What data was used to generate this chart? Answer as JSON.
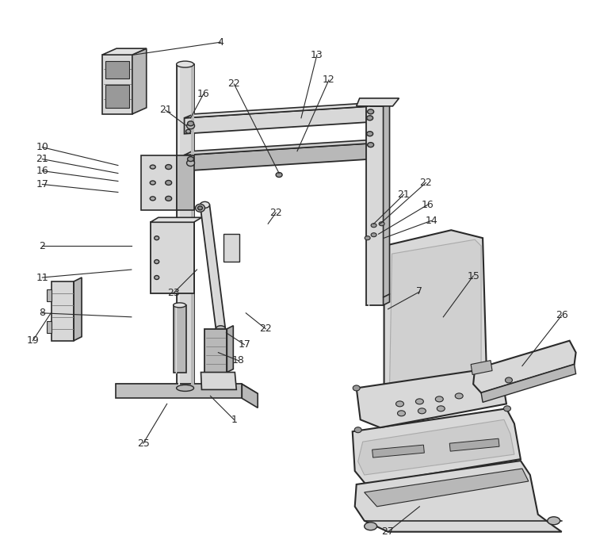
{
  "bg_color": "#ffffff",
  "dark_color": "#2a2a2a",
  "gray1": "#c8c8c8",
  "gray2": "#b8b8b8",
  "gray3": "#d8d8d8",
  "gray4": "#e2e2e2",
  "figsize": [
    7.52,
    7.0
  ],
  "dpi": 100
}
